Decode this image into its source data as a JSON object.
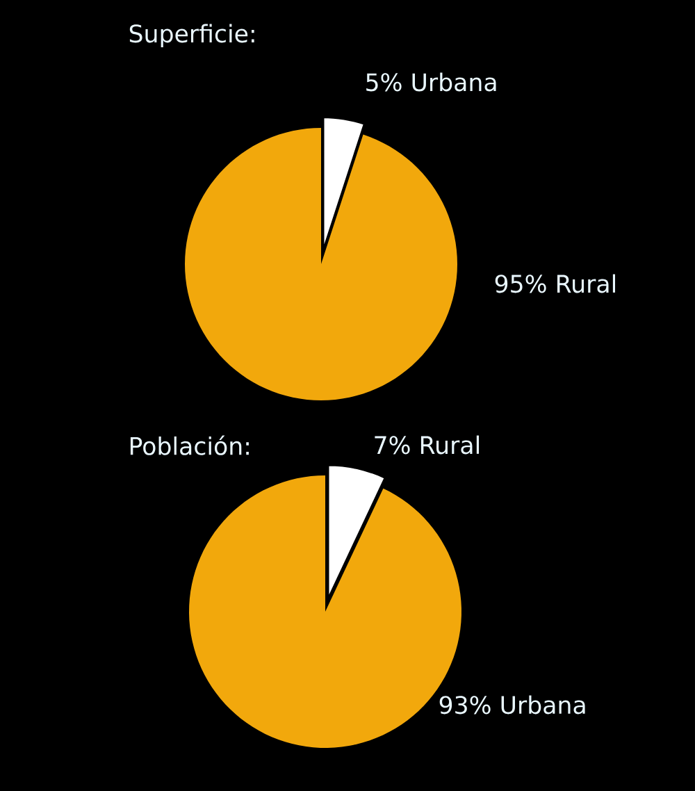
{
  "chart_data": [
    {
      "type": "pie",
      "title": "Superficie:",
      "categories": [
        "Urbana",
        "Rural"
      ],
      "values": [
        5,
        95
      ],
      "colors": [
        "#ffffff",
        "#f2a80c"
      ],
      "value_labels": [
        "5%",
        "95%"
      ]
    },
    {
      "type": "pie",
      "title": "Población:",
      "categories": [
        "Rural",
        "Urbana"
      ],
      "values": [
        7,
        93
      ],
      "colors": [
        "#ffffff",
        "#f2a80c"
      ],
      "value_labels": [
        "7%",
        "93%"
      ]
    }
  ]
}
